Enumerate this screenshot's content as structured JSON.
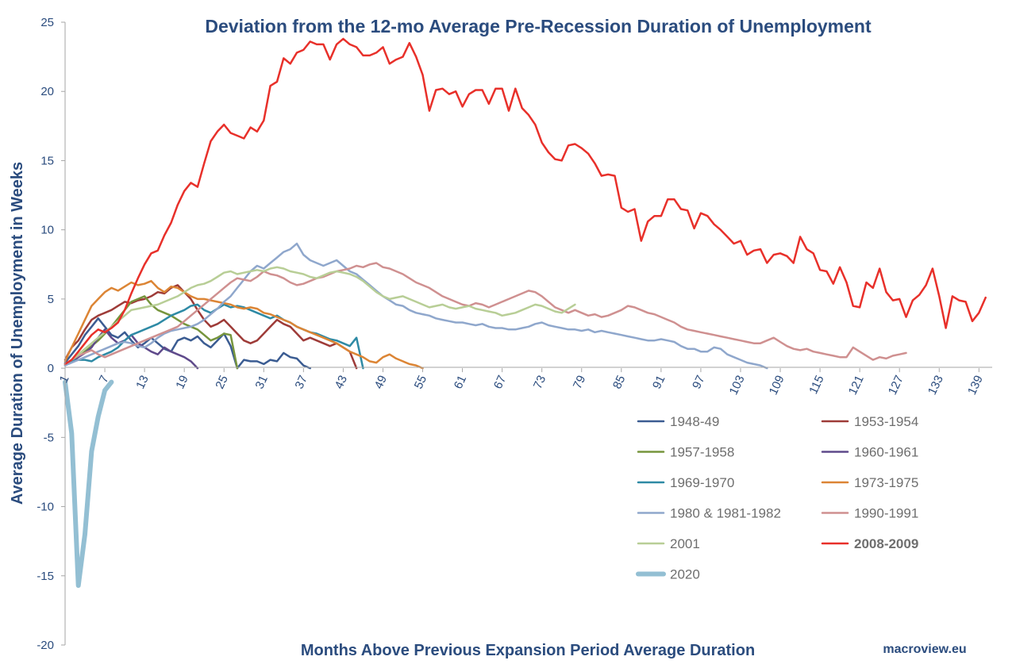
{
  "chart_data": {
    "type": "line",
    "title": "Deviation from the 12-mo Average Pre-Recession Duration of Unemployment",
    "xlabel": "Months Above Previous Expansion Period Average Duration",
    "ylabel": "Average Duration of Unemployment in Weeks",
    "credit": "macroview.eu",
    "xlim": [
      1,
      141
    ],
    "ylim": [
      -20,
      25
    ],
    "y_ticks": [
      25,
      20,
      15,
      10,
      5,
      0,
      -5,
      -10,
      -15,
      -20
    ],
    "x_ticks": [
      1,
      7,
      13,
      19,
      25,
      31,
      37,
      43,
      49,
      55,
      61,
      67,
      73,
      79,
      85,
      91,
      97,
      103,
      109,
      115,
      121,
      127,
      133,
      139
    ],
    "grid": false,
    "legend_position": "bottom-right",
    "series": [
      {
        "name": "1948-49",
        "color": "#3b5c92",
        "width": 2.5,
        "bold": false,
        "values": [
          0.4,
          1.0,
          1.6,
          2.4,
          3.0,
          3.6,
          3.0,
          2.4,
          2.2,
          2.6,
          2.0,
          1.5,
          1.8,
          2.2,
          1.8,
          1.4,
          1.2,
          2.0,
          2.2,
          2.0,
          2.3,
          1.8,
          1.5,
          2.0,
          2.5,
          1.6,
          0.0,
          0.6,
          0.5,
          0.5,
          0.3,
          0.6,
          0.5,
          1.1,
          0.8,
          0.7,
          0.2,
          0.0
        ]
      },
      {
        "name": "1953-1954",
        "color": "#9e3b38",
        "width": 2.5,
        "bold": false,
        "values": [
          0.6,
          1.5,
          2.0,
          2.8,
          3.5,
          3.8,
          4.0,
          4.2,
          4.5,
          4.8,
          4.7,
          4.9,
          5.0,
          5.2,
          5.5,
          5.4,
          5.8,
          6.0,
          5.5,
          5.0,
          4.2,
          3.5,
          3.0,
          3.2,
          3.5,
          3.0,
          2.5,
          2.0,
          1.8,
          2.0,
          2.5,
          3.0,
          3.5,
          3.2,
          3.0,
          2.5,
          2.0,
          2.2,
          2.0,
          1.8,
          1.6,
          1.8,
          1.5,
          1.2,
          0.0
        ]
      },
      {
        "name": "1957-1958",
        "color": "#77953d",
        "width": 2.5,
        "bold": false,
        "values": [
          0.3,
          0.5,
          0.8,
          1.2,
          1.6,
          2.0,
          2.5,
          3.0,
          3.6,
          4.2,
          4.8,
          5.0,
          5.2,
          4.6,
          4.2,
          4.0,
          3.8,
          3.5,
          3.2,
          3.0,
          2.8,
          2.4,
          2.0,
          2.2,
          2.5,
          2.4,
          0.0
        ]
      },
      {
        "name": "1960-1961",
        "color": "#5f4a8b",
        "width": 2.5,
        "bold": false,
        "values": [
          0.2,
          0.5,
          0.8,
          1.1,
          1.5,
          2.2,
          2.8,
          2.2,
          1.8,
          2.0,
          2.4,
          1.8,
          1.5,
          1.2,
          1.0,
          1.5,
          1.2,
          1.0,
          0.8,
          0.5,
          0.0
        ]
      },
      {
        "name": "1969-1970",
        "color": "#2e8aa5",
        "width": 2.5,
        "bold": false,
        "values": [
          0.3,
          0.5,
          0.6,
          0.6,
          0.5,
          0.8,
          1.0,
          1.2,
          1.5,
          2.0,
          2.4,
          2.6,
          2.8,
          3.0,
          3.2,
          3.5,
          3.8,
          4.0,
          4.2,
          4.5,
          4.6,
          4.2,
          4.0,
          4.3,
          4.6,
          4.4,
          4.5,
          4.4,
          4.2,
          4.0,
          3.8,
          3.6,
          3.8,
          3.5,
          3.3,
          3.0,
          2.8,
          2.6,
          2.5,
          2.3,
          2.1,
          2.0,
          1.8,
          1.6,
          2.2,
          0.0
        ]
      },
      {
        "name": "1973-1975",
        "color": "#dc8535",
        "width": 2.5,
        "bold": false,
        "values": [
          0.5,
          1.5,
          2.5,
          3.5,
          4.5,
          5.0,
          5.5,
          5.8,
          5.6,
          5.9,
          6.2,
          6.0,
          6.1,
          6.3,
          5.8,
          5.5,
          5.9,
          5.8,
          5.5,
          5.2,
          5.0,
          5.0,
          4.9,
          4.8,
          4.7,
          4.6,
          4.4,
          4.3,
          4.4,
          4.3,
          4.0,
          3.9,
          3.7,
          3.5,
          3.3,
          3.0,
          2.8,
          2.6,
          2.4,
          2.2,
          2.0,
          1.8,
          1.5,
          1.2,
          1.0,
          0.8,
          0.5,
          0.4,
          0.8,
          1.0,
          0.7,
          0.5,
          0.3,
          0.2,
          0.0
        ]
      },
      {
        "name": "1980 & 1981-1982",
        "color": "#8fa7cc",
        "width": 2.5,
        "bold": false,
        "values": [
          0.2,
          0.4,
          0.6,
          0.8,
          1.0,
          1.2,
          1.4,
          1.6,
          1.8,
          1.9,
          1.8,
          1.6,
          1.5,
          1.8,
          2.2,
          2.5,
          2.7,
          2.8,
          2.9,
          3.0,
          3.2,
          3.5,
          3.9,
          4.3,
          4.8,
          5.2,
          5.8,
          6.4,
          7.0,
          7.4,
          7.2,
          7.6,
          8.0,
          8.4,
          8.6,
          9.0,
          8.2,
          7.8,
          7.6,
          7.4,
          7.6,
          7.8,
          7.4,
          7.0,
          6.8,
          6.4,
          6.0,
          5.6,
          5.2,
          4.9,
          4.6,
          4.5,
          4.2,
          4.0,
          3.9,
          3.8,
          3.6,
          3.5,
          3.4,
          3.3,
          3.3,
          3.2,
          3.1,
          3.2,
          3.0,
          2.9,
          2.9,
          2.8,
          2.8,
          2.9,
          3.0,
          3.2,
          3.3,
          3.1,
          3.0,
          2.9,
          2.8,
          2.8,
          2.7,
          2.8,
          2.6,
          2.7,
          2.6,
          2.5,
          2.4,
          2.3,
          2.2,
          2.1,
          2.0,
          2.0,
          2.1,
          2.0,
          1.9,
          1.6,
          1.4,
          1.4,
          1.2,
          1.2,
          1.5,
          1.4,
          1.0,
          0.8,
          0.6,
          0.4,
          0.3,
          0.2,
          0.0
        ]
      },
      {
        "name": "1990-1991",
        "color": "#cf9090",
        "width": 2.5,
        "bold": false,
        "values": [
          0.3,
          0.6,
          0.9,
          1.1,
          1.3,
          1.0,
          0.8,
          1.0,
          1.2,
          1.4,
          1.6,
          1.8,
          2.0,
          2.2,
          2.4,
          2.6,
          2.8,
          3.0,
          3.4,
          3.8,
          4.2,
          4.6,
          5.0,
          5.4,
          5.8,
          6.2,
          6.5,
          6.4,
          6.3,
          6.6,
          7.0,
          6.8,
          6.7,
          6.5,
          6.2,
          6.0,
          6.1,
          6.3,
          6.5,
          6.6,
          6.8,
          7.0,
          7.1,
          7.2,
          7.4,
          7.3,
          7.5,
          7.6,
          7.3,
          7.2,
          7.0,
          6.8,
          6.5,
          6.2,
          6.0,
          5.8,
          5.5,
          5.2,
          5.0,
          4.8,
          4.6,
          4.5,
          4.7,
          4.6,
          4.4,
          4.6,
          4.8,
          5.0,
          5.2,
          5.4,
          5.6,
          5.5,
          5.2,
          4.8,
          4.4,
          4.2,
          4.0,
          4.2,
          4.0,
          3.8,
          3.9,
          3.7,
          3.8,
          4.0,
          4.2,
          4.5,
          4.4,
          4.2,
          4.0,
          3.9,
          3.7,
          3.5,
          3.3,
          3.0,
          2.8,
          2.7,
          2.6,
          2.5,
          2.4,
          2.3,
          2.2,
          2.1,
          2.0,
          1.9,
          1.8,
          1.8,
          2.0,
          2.2,
          1.9,
          1.6,
          1.4,
          1.3,
          1.4,
          1.2,
          1.1,
          1.0,
          0.9,
          0.8,
          0.8,
          1.5,
          1.2,
          0.9,
          0.6,
          0.8,
          0.7,
          0.9,
          1.0,
          1.1
        ]
      },
      {
        "name": "2001",
        "color": "#b8ce96",
        "width": 2.5,
        "bold": false,
        "values": [
          0.3,
          0.6,
          1.0,
          1.4,
          1.8,
          2.2,
          2.6,
          3.0,
          3.4,
          3.8,
          4.2,
          4.3,
          4.4,
          4.5,
          4.6,
          4.8,
          5.0,
          5.2,
          5.5,
          5.8,
          6.0,
          6.1,
          6.3,
          6.6,
          6.9,
          7.0,
          6.8,
          6.9,
          7.0,
          7.1,
          7.0,
          7.2,
          7.3,
          7.2,
          7.0,
          6.9,
          6.8,
          6.6,
          6.5,
          6.7,
          6.9,
          7.0,
          6.9,
          6.8,
          6.6,
          6.3,
          5.9,
          5.5,
          5.2,
          5.0,
          5.1,
          5.2,
          5.0,
          4.8,
          4.6,
          4.4,
          4.5,
          4.6,
          4.4,
          4.3,
          4.4,
          4.5,
          4.3,
          4.2,
          4.1,
          4.0,
          3.8,
          3.9,
          4.0,
          4.2,
          4.4,
          4.6,
          4.5,
          4.3,
          4.1,
          4.0,
          4.3,
          4.6
        ]
      },
      {
        "name": "2008-2009",
        "color": "#e8302a",
        "width": 2.5,
        "bold": true,
        "values": [
          0.3,
          0.6,
          1.2,
          1.8,
          2.4,
          2.8,
          2.6,
          2.9,
          3.3,
          4.2,
          5.4,
          6.5,
          7.5,
          8.3,
          8.5,
          9.6,
          10.5,
          11.8,
          12.8,
          13.4,
          13.1,
          14.8,
          16.4,
          17.1,
          17.6,
          17.0,
          16.8,
          16.6,
          17.4,
          17.1,
          17.9,
          20.4,
          20.7,
          22.4,
          22.0,
          22.8,
          23.0,
          23.6,
          23.4,
          23.4,
          22.3,
          23.4,
          23.8,
          23.4,
          23.2,
          22.6,
          22.6,
          22.8,
          23.2,
          22.0,
          22.3,
          22.5,
          23.5,
          22.5,
          21.2,
          18.6,
          20.1,
          20.2,
          19.8,
          20.0,
          18.9,
          19.8,
          20.1,
          20.1,
          19.1,
          20.2,
          20.2,
          18.6,
          20.2,
          18.8,
          18.3,
          17.6,
          16.3,
          15.6,
          15.1,
          15.0,
          16.1,
          16.2,
          15.9,
          15.5,
          14.8,
          13.9,
          14.0,
          13.9,
          11.6,
          11.3,
          11.5,
          9.2,
          10.6,
          11.0,
          11.0,
          12.2,
          12.2,
          11.5,
          11.4,
          10.1,
          11.2,
          11.0,
          10.4,
          10.0,
          9.5,
          9.0,
          9.2,
          8.2,
          8.5,
          8.6,
          7.6,
          8.2,
          8.3,
          8.1,
          7.6,
          9.5,
          8.6,
          8.3,
          7.1,
          7.0,
          6.1,
          7.3,
          6.2,
          4.5,
          4.4,
          6.2,
          5.8,
          7.2,
          5.5,
          4.9,
          5.0,
          3.7,
          4.9,
          5.3,
          6.0,
          7.2,
          5.2,
          2.9,
          5.2,
          4.9,
          4.8,
          3.4,
          4.0,
          5.1
        ]
      },
      {
        "name": "2020",
        "color": "#93bfd3",
        "width": 6,
        "bold": false,
        "values": [
          -1.0,
          -4.7,
          -15.7,
          -12.0,
          -6.0,
          -3.5,
          -1.6,
          -1.0
        ]
      }
    ]
  }
}
